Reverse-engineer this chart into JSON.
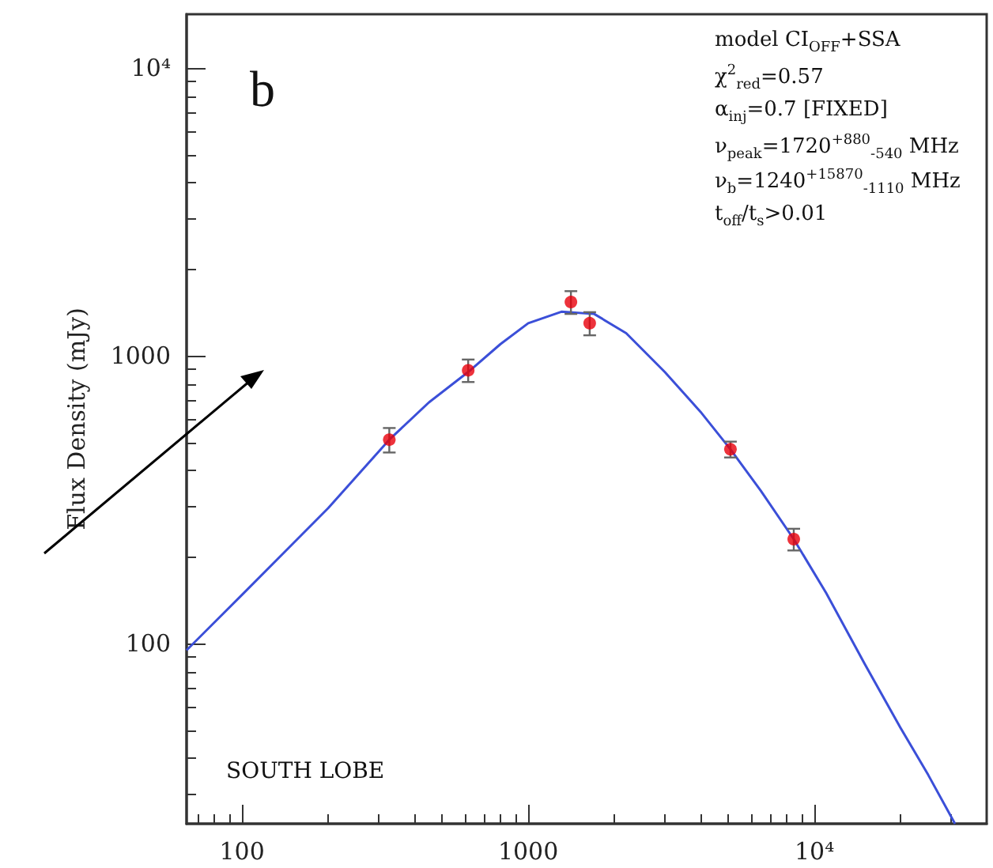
{
  "chart_data": {
    "type": "scatter",
    "ylabel": "Flux Density (mJy)",
    "log": "xy",
    "xlim": [
      64,
      40000
    ],
    "ylim": [
      23.7,
      15400
    ],
    "xticks": [
      100,
      1000,
      {
        "value": 10000,
        "label": "10⁴"
      }
    ],
    "yticks": [
      100,
      1000,
      {
        "value": 10000,
        "label": "10⁴"
      }
    ],
    "grid": false,
    "series": [
      {
        "type": "line",
        "color": "#3b4fd8",
        "marker": "none",
        "line_style": "solid",
        "x": [
          64,
          100,
          150,
          200,
          327,
          450,
          617,
          800,
          1000,
          1306,
          1700,
          2200,
          3000,
          4000,
          5090,
          6500,
          8470,
          11000,
          15000,
          20000,
          25000,
          31000
        ],
        "values": [
          95,
          148,
          222,
          296,
          512,
          690,
          880,
          1100,
          1300,
          1425,
          1400,
          1200,
          880,
          640,
          474,
          340,
          231,
          150,
          85,
          51,
          35,
          23.7
        ]
      },
      {
        "color": "#e8000b",
        "marker": "circle",
        "x": [
          327,
          617,
          1410,
          1640,
          5090,
          8470
        ],
        "values": [
          512,
          892,
          1540,
          1300,
          474,
          231
        ],
        "errors": [
          50,
          80,
          140,
          120,
          30,
          20
        ]
      }
    ],
    "annotations": [
      "b",
      "model CI$_{OFF}$+SSA",
      "χ$^{2}$$_{red}$=0.57",
      "α$_{inj}$=0.7 [FIXED]",
      "ν$_{peak}$=1720$^{+880}$$_{-540}$ MHz",
      "ν$_{b}$=1240$^{+15870}$$_{-1110}$ MHz",
      "t$_{off}$/t$_{s}$>0.01",
      "SOUTH LOBE"
    ]
  }
}
